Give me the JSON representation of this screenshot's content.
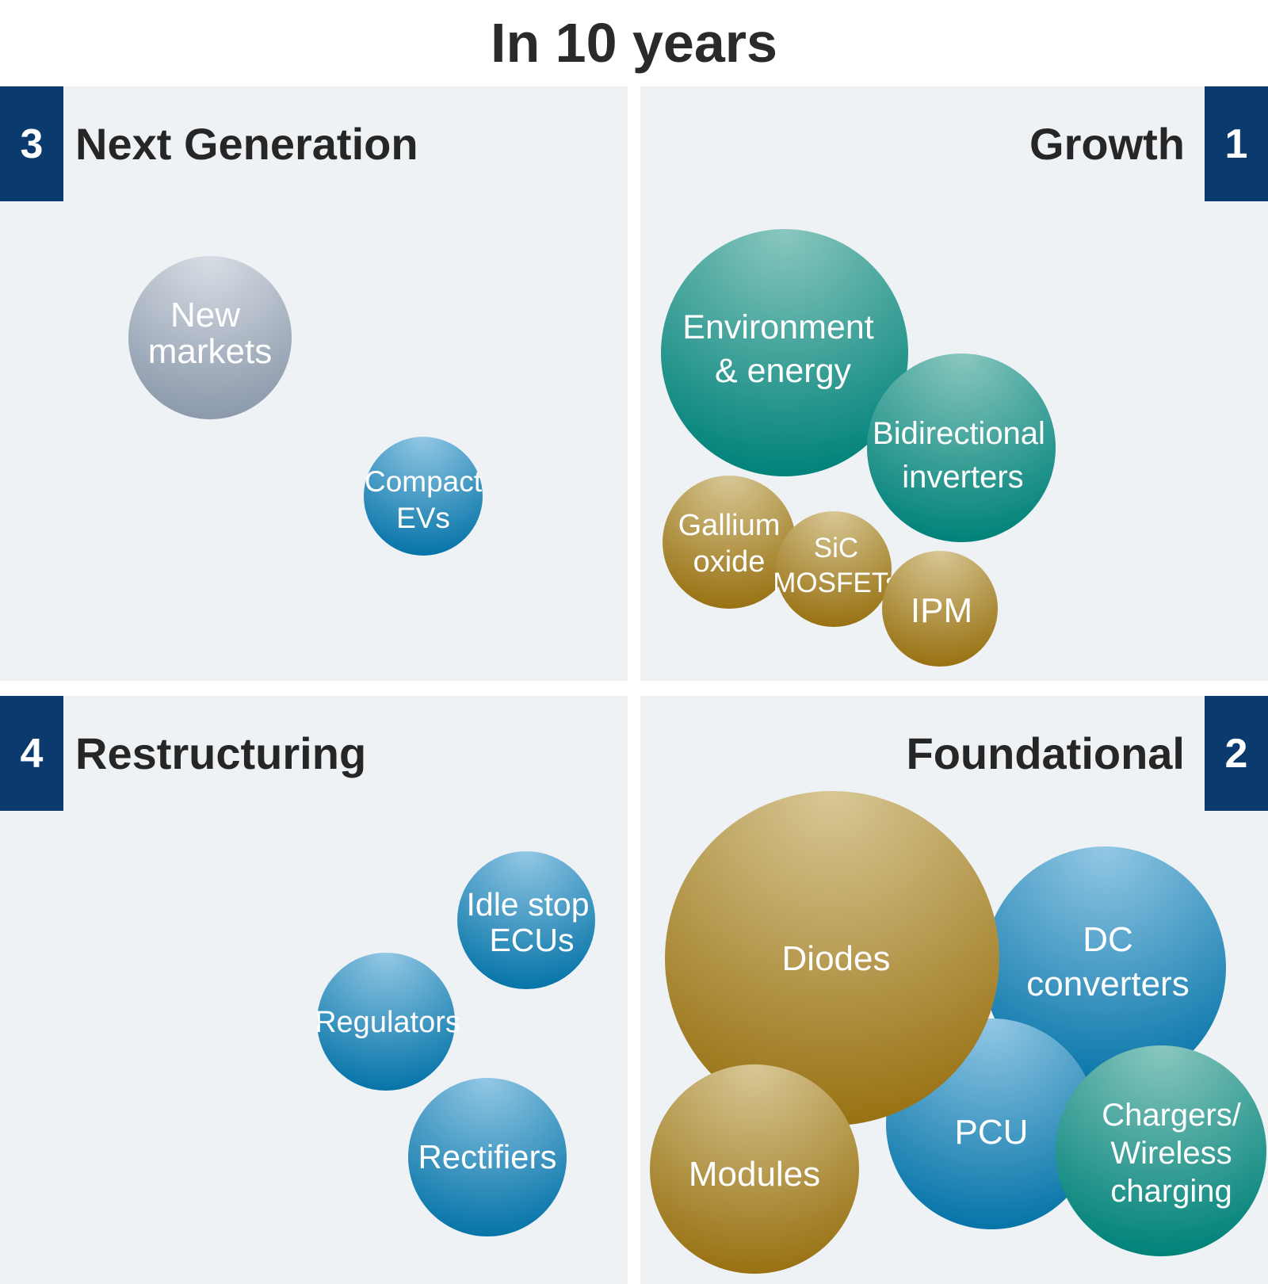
{
  "title": "In 10 years",
  "quadrants": {
    "next_generation": {
      "number": "3",
      "label": "Next Generation"
    },
    "growth": {
      "number": "1",
      "label": "Growth"
    },
    "restructuring": {
      "number": "4",
      "label": "Restructuring"
    },
    "foundational": {
      "number": "2",
      "label": "Foundational"
    }
  },
  "bubbles": {
    "new_markets": {
      "lines": [
        "New",
        "markets"
      ],
      "color": "gray"
    },
    "compact_evs": {
      "lines": [
        "Compact",
        "EVs"
      ],
      "color": "blue"
    },
    "environment_energy": {
      "lines": [
        "Environment",
        "& energy"
      ],
      "color": "teal"
    },
    "bidirectional_inverters": {
      "lines": [
        "Bidirectional",
        "inverters"
      ],
      "color": "teal"
    },
    "gallium_oxide": {
      "lines": [
        "Gallium",
        "oxide"
      ],
      "color": "gold"
    },
    "sic_mosfets": {
      "lines": [
        "SiC",
        "MOSFETs"
      ],
      "color": "gold"
    },
    "ipm": {
      "lines": [
        "IPM"
      ],
      "color": "gold"
    },
    "idle_stop_ecus": {
      "lines": [
        "Idle stop",
        "ECUs"
      ],
      "color": "blue"
    },
    "regulators": {
      "lines": [
        "Regulators"
      ],
      "color": "blue"
    },
    "rectifiers": {
      "lines": [
        "Rectifiers"
      ],
      "color": "blue"
    },
    "diodes": {
      "lines": [
        "Diodes"
      ],
      "color": "gold"
    },
    "dc_converters": {
      "lines": [
        "DC",
        "converters"
      ],
      "color": "blue"
    },
    "modules": {
      "lines": [
        "Modules"
      ],
      "color": "gold"
    },
    "pcu": {
      "lines": [
        "PCU"
      ],
      "color": "blue"
    },
    "chargers_wireless": {
      "lines": [
        "Chargers/",
        "Wireless",
        "charging"
      ],
      "color": "teal"
    }
  },
  "colors": {
    "header_box": "#0b3a6e",
    "quadrant_bg": "#eef2f5",
    "gray": [
      "#d6dbe2",
      "#8e9bad"
    ],
    "blue": [
      "#8cc3e2",
      "#0a77aa"
    ],
    "teal": [
      "#86c4bd",
      "#00857b"
    ],
    "gold": [
      "#d6c592",
      "#9a7314"
    ]
  }
}
